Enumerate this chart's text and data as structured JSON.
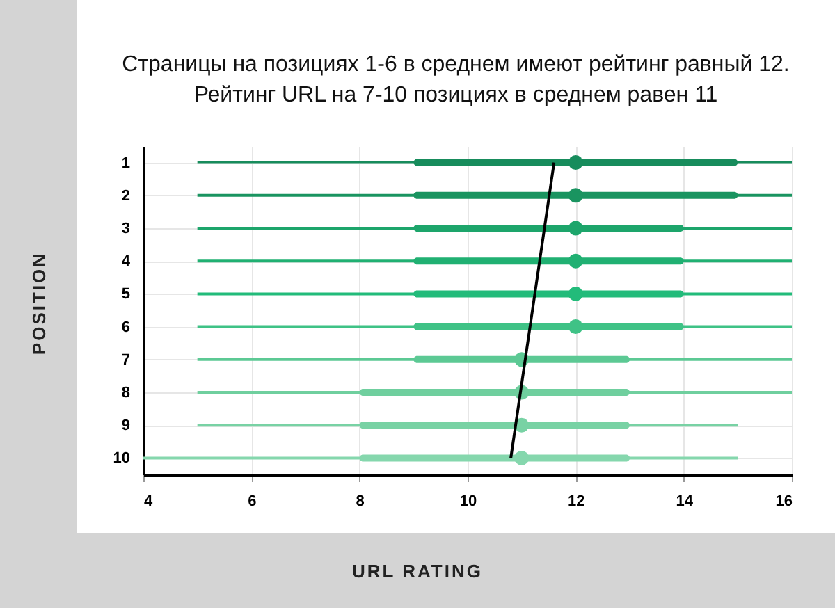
{
  "chart_data": {
    "type": "box",
    "title": "Страницы на позициях 1-6 в среднем имеют рейтинг равный 12.\nРейтинг URL на 7-10 позициях в среднем равен 11",
    "xlabel": "URL RATING",
    "ylabel": "POSITION",
    "orientation": "horizontal",
    "categories": [
      "1",
      "2",
      "3",
      "4",
      "5",
      "6",
      "7",
      "8",
      "9",
      "10"
    ],
    "xlim": [
      4,
      16
    ],
    "xticks": [
      4,
      6,
      8,
      10,
      12,
      14,
      16
    ],
    "grid": true,
    "series": [
      {
        "colors": [
          "#178c5c",
          "#1a9460",
          "#1da56b",
          "#20b072",
          "#22bb7a",
          "#3fc286",
          "#5cc994",
          "#6fcf9e",
          "#78d2a4",
          "#85d7ad"
        ],
        "boxes": [
          {
            "low": 5,
            "q1": 9,
            "median": 12,
            "q3": 15,
            "high": 16
          },
          {
            "low": 5,
            "q1": 9,
            "median": 12,
            "q3": 15,
            "high": 16
          },
          {
            "low": 5,
            "q1": 9,
            "median": 12,
            "q3": 14,
            "high": 16
          },
          {
            "low": 5,
            "q1": 9,
            "median": 12,
            "q3": 14,
            "high": 16
          },
          {
            "low": 5,
            "q1": 9,
            "median": 12,
            "q3": 14,
            "high": 16
          },
          {
            "low": 5,
            "q1": 9,
            "median": 12,
            "q3": 14,
            "high": 16
          },
          {
            "low": 5,
            "q1": 9,
            "median": 11,
            "q3": 13,
            "high": 16
          },
          {
            "low": 5,
            "q1": 8,
            "median": 11,
            "q3": 13,
            "high": 16
          },
          {
            "low": 5,
            "q1": 8,
            "median": 11,
            "q3": 13,
            "high": 15
          },
          {
            "low": 4,
            "q1": 8,
            "median": 11,
            "q3": 13,
            "high": 15
          }
        ]
      },
      {
        "type": "line",
        "color": "#000000",
        "x": [
          "1",
          "10"
        ],
        "values": [
          11.6,
          10.8
        ]
      }
    ]
  }
}
